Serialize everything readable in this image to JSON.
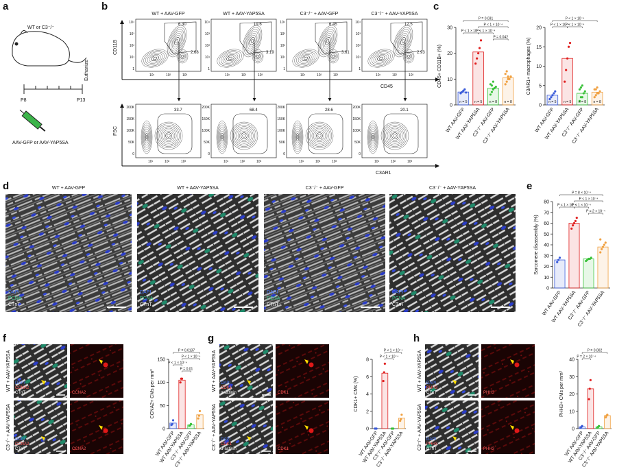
{
  "figure": {
    "panel_letters": [
      "a",
      "b",
      "c",
      "d",
      "e",
      "f",
      "g",
      "h"
    ],
    "a": {
      "genotype": "WT or C3⁻/⁻",
      "euthanize": "Euthanize",
      "start": "P8",
      "end": "P13",
      "injection": "AAV-GFP or AAV-YAP5SA"
    },
    "b": {
      "conditions": [
        "WT + AAV-GFP",
        "WT + AAV-YAP5SA",
        "C3⁻/⁻ + AAV-GFP",
        "C3⁻/⁻ + AAV-YAP5SA"
      ],
      "top_gate_upper": [
        "6.30",
        "19.6",
        "6.45",
        "12.5"
      ],
      "top_gate_right": [
        "2.68",
        "3.19",
        "3.61",
        "2.93"
      ],
      "bottom_gate": [
        "33.7",
        "68.4",
        "28.6",
        "20.1"
      ],
      "top_y_label": "CD11B",
      "top_x_label": "CD45",
      "bottom_y_label": "FSC",
      "bottom_x_label": "C3AR1",
      "top_y_ticks": [
        "10⁴",
        "10³",
        "10²",
        "10¹",
        "1"
      ],
      "x_ticks": [
        "10¹",
        "10²",
        "10³"
      ],
      "bottom_y_ticks": [
        "200K",
        "150K",
        "100K",
        "50K",
        "0"
      ]
    },
    "d": {
      "conditions": [
        "WT + AAV-GFP",
        "WT + AAV-YAP5SA",
        "C3⁻/⁻ + AAV-GFP",
        "C3⁻/⁻ + AAV-YAP5SA"
      ],
      "stains": [
        "DAPI",
        "PCNA",
        "CTnT"
      ]
    },
    "f": {
      "rows": [
        "WT + AAV-YAP5SA",
        "C3⁻/⁻ + AAV-YAP5SA"
      ],
      "stains": [
        "DAPI",
        "CCNA2",
        "CTnT"
      ],
      "single": "CCNA2"
    },
    "g": {
      "rows": [
        "WT + AAV-YAP5SA",
        "C3⁻/⁻ + AAV-YAP5SA"
      ],
      "stains": [
        "DAPI",
        "CDK1",
        "α-actinin"
      ],
      "single": "CDK1"
    },
    "h": {
      "rows": [
        "WT + AAV-YAP5SA",
        "C3⁻/⁻ + AAV-YAP5SA"
      ],
      "stains": [
        "DAPI",
        "PHH3",
        "CTnT"
      ],
      "single": "PHH3"
    }
  },
  "chart_data": [
    {
      "type": "bar",
      "y_label": "CD45+ CD11B+ (%)",
      "categories": [
        "WT AAV-GFP",
        "WT AAV-YAP5SA",
        "C3⁻/⁻ AAV-GFP",
        "C3⁻/⁻ AAV-YAP5SA"
      ],
      "values": [
        5,
        20.5,
        6.5,
        10.5
      ],
      "colors": [
        "#3a5bd9",
        "#e02020",
        "#3cc23c",
        "#f0a040"
      ],
      "points": [
        [
          4.5,
          5,
          5.5,
          6,
          4.8
        ],
        [
          16,
          18,
          20,
          22,
          25
        ],
        [
          4,
          5,
          6,
          6.5,
          7,
          8,
          7.5,
          9
        ],
        [
          8,
          9,
          10,
          10,
          11,
          12,
          13,
          11
        ]
      ],
      "n_labels": [
        "n = 5",
        "n = 5",
        "n = 8",
        "n = 8"
      ],
      "annotations": [
        "P = 0.031",
        "P < 1 × 10⁻⁴",
        "P < 1 × 10⁻⁴",
        "P < 1 × 10⁻⁴",
        "P = 0.042"
      ],
      "ylim": [
        0,
        30
      ],
      "yticks": [
        0,
        10,
        20,
        30
      ]
    },
    {
      "type": "bar",
      "y_label": "C3AR1+ macrophages (%)",
      "categories": [
        "WT AAV-GFP",
        "WT AAV-YAP5SA",
        "C3⁻/⁻ AAV-GFP",
        "C3⁻/⁻ AAV-YAP5SA"
      ],
      "values": [
        2.5,
        12,
        3,
        3.3
      ],
      "colors": [
        "#3a5bd9",
        "#e02020",
        "#3cc23c",
        "#f0a040"
      ],
      "points": [
        [
          1.5,
          2,
          2.5,
          3,
          3.5
        ],
        [
          6,
          9,
          12,
          15,
          16
        ],
        [
          1,
          2,
          2,
          3,
          3.5,
          4,
          4.5,
          5
        ],
        [
          2,
          2.5,
          3,
          3,
          3.5,
          4,
          4,
          4.5
        ]
      ],
      "n_labels": [
        "n = 5",
        "n = 5",
        "n = 8",
        "n = 8"
      ],
      "annotations": [
        "P < 1 × 10⁻⁴",
        "P < 1 × 10⁻⁴",
        "P < 1 × 10⁻⁴"
      ],
      "ylim": [
        0,
        20
      ],
      "yticks": [
        0,
        5,
        10,
        15,
        20
      ]
    },
    {
      "type": "bar",
      "y_label": "Sarcomere disassembly (%)",
      "categories": [
        "WT AAV-GFP",
        "WT AAV-YAP5SA",
        "C3⁻/⁻ AAV-GFP",
        "C3⁻/⁻ AAV-YAP5SA"
      ],
      "values": [
        26,
        60,
        27,
        38
      ],
      "colors": [
        "#3a5bd9",
        "#e02020",
        "#3cc23c",
        "#f0a040"
      ],
      "points": [
        [
          24,
          26,
          28
        ],
        [
          55,
          58,
          60,
          62,
          65
        ],
        [
          25,
          26,
          27,
          27,
          28
        ],
        [
          33,
          36,
          38,
          40,
          42,
          45
        ]
      ],
      "annotations": [
        "P = 8 × 10⁻⁴",
        "P < 1 × 10⁻⁴",
        "P < 1 × 10⁻⁴",
        "P < 1 × 10⁻⁴",
        "P = 2 × 10⁻⁴"
      ],
      "ylim": [
        0,
        80
      ],
      "yticks": [
        0,
        10,
        20,
        30,
        40,
        50,
        60,
        70,
        80
      ]
    },
    {
      "type": "bar",
      "y_label": "CCNA2+ CMs per mm²",
      "categories": [
        "WT AAV-GFP",
        "WT AAV-YAP5SA",
        "C3⁻/⁻ AAV-GFP",
        "C3⁻/⁻ AAV-YAP5SA"
      ],
      "values": [
        12,
        105,
        8,
        30
      ],
      "colors": [
        "#3a5bd9",
        "#e02020",
        "#3cc23c",
        "#f0a040"
      ],
      "points": [
        [
          8,
          10,
          18
        ],
        [
          100,
          108,
          108
        ],
        [
          6,
          7,
          10
        ],
        [
          22,
          28,
          38
        ]
      ],
      "annotations": [
        "P = 0.0137",
        "P < 1 × 10⁻⁴",
        "P < 1 × 10⁻⁴",
        "P = 0.01"
      ],
      "ylim": [
        0,
        150
      ],
      "yticks": [
        0,
        50,
        100,
        150
      ]
    },
    {
      "type": "bar",
      "y_label": "CDK1+ CMs (%)",
      "categories": [
        "WT AAV-GFP",
        "WT AAV-YAP5SA",
        "C3⁻/⁻ AAV-GFP",
        "C3⁻/⁻ AAV-YAP5SA"
      ],
      "values": [
        0,
        6.4,
        0,
        1.2
      ],
      "colors": [
        "#3a5bd9",
        "#e02020",
        "#3cc23c",
        "#f0a040"
      ],
      "points": [
        [
          0,
          0,
          0
        ],
        [
          5.5,
          6.5,
          7.5
        ],
        [
          0,
          0,
          0
        ],
        [
          0.9,
          1.1,
          1.6
        ]
      ],
      "annotations": [
        "P < 1 × 10⁻⁴",
        "P < 1 × 10⁻⁴"
      ],
      "ylim": [
        0,
        8
      ],
      "yticks": [
        0,
        2,
        4,
        6,
        8
      ]
    },
    {
      "type": "bar",
      "y_label": "PHH3+ CMs per mm²",
      "categories": [
        "WT AAV-GFP",
        "WT AAV-YAP5SA",
        "C3⁻/⁻ AAV-GFP",
        "C3⁻/⁻ AAV-YAP5SA"
      ],
      "values": [
        1,
        23,
        1,
        7.5
      ],
      "colors": [
        "#3a5bd9",
        "#e02020",
        "#3cc23c",
        "#f0a040"
      ],
      "points": [
        [
          0.5,
          1,
          1.5
        ],
        [
          17,
          23,
          28
        ],
        [
          0.5,
          1,
          1.5
        ],
        [
          6.5,
          7.5,
          8
        ]
      ],
      "annotations": [
        "P = 0.002",
        "P = 2 × 10⁻⁴"
      ],
      "ylim": [
        0,
        40
      ],
      "yticks": [
        0,
        10,
        20,
        30,
        40
      ]
    }
  ]
}
